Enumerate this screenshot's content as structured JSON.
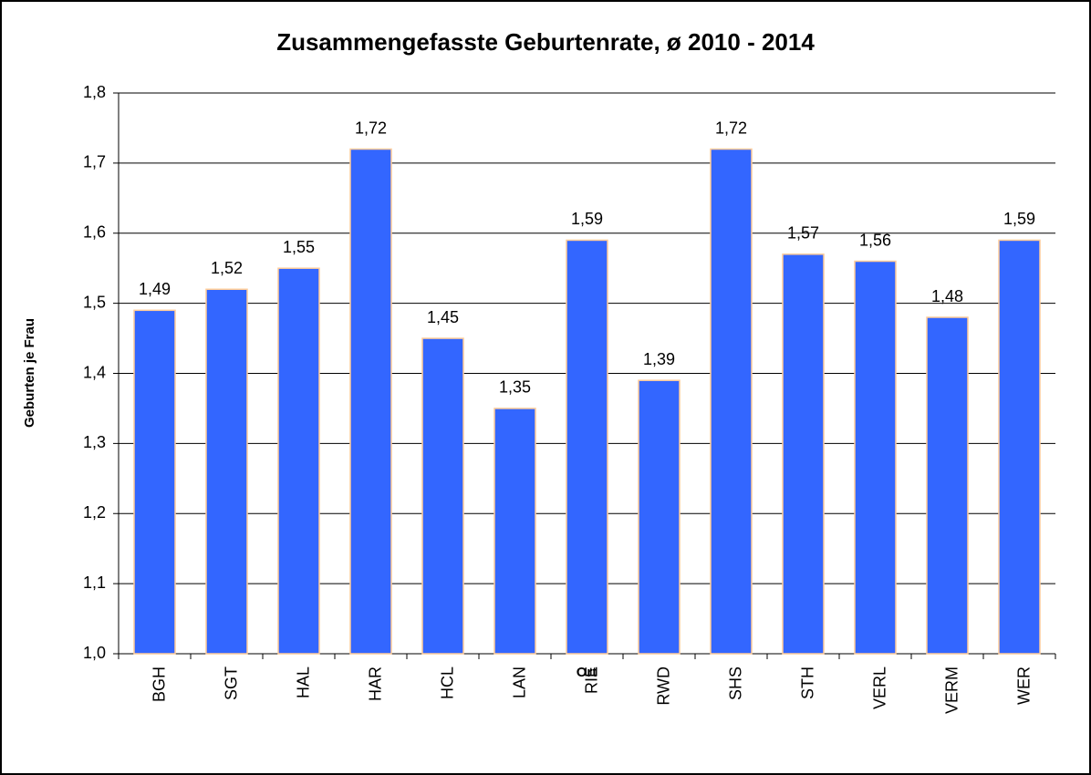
{
  "chart_data": {
    "type": "bar",
    "title": "Zusammengefasste Geburtenrate, ø 2010 - 2014",
    "x_label": "Ort",
    "y_label": "Geburten je Frau",
    "categories": [
      "BGH",
      "SGT",
      "HAL",
      "HAR",
      "HCL",
      "LAN",
      "RIE",
      "RWD",
      "SHS",
      "STH",
      "VERL",
      "VERM",
      "WER"
    ],
    "values": [
      1.49,
      1.52,
      1.55,
      1.72,
      1.45,
      1.35,
      1.59,
      1.39,
      1.72,
      1.57,
      1.56,
      1.48,
      1.59
    ],
    "value_labels": [
      "1,49",
      "1,52",
      "1,55",
      "1,72",
      "1,45",
      "1,35",
      "1,59",
      "1,39",
      "1,72",
      "1,57",
      "1,56",
      "1,48",
      "1,59"
    ],
    "color": "#3366ff",
    "ylim": [
      1.0,
      1.8
    ],
    "yticks": [
      {
        "value": 1.0,
        "label": "1,0"
      },
      {
        "value": 1.1,
        "label": "1,1"
      },
      {
        "value": 1.2,
        "label": "1,2"
      },
      {
        "value": 1.3,
        "label": "1,3"
      },
      {
        "value": 1.4,
        "label": "1,4"
      },
      {
        "value": 1.5,
        "label": "1,5"
      },
      {
        "value": 1.6,
        "label": "1,6"
      },
      {
        "value": 1.7,
        "label": "1,7"
      },
      {
        "value": 1.8,
        "label": "1,8"
      }
    ],
    "grid": true
  }
}
